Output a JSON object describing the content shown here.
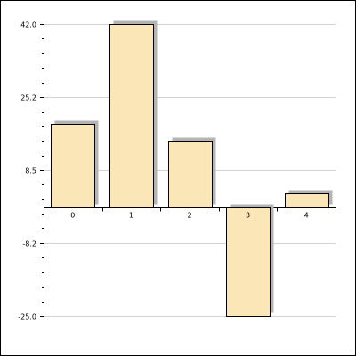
{
  "chart_data": {
    "type": "bar",
    "title": "",
    "xlabel": "",
    "ylabel": "",
    "categories": [
      "0",
      "1",
      "2",
      "3",
      "4"
    ],
    "series": [
      {
        "values": [
          19.2,
          42.0,
          15.3,
          -25.0,
          3.2
        ]
      }
    ],
    "ylim": [
      -25.0,
      42.0
    ],
    "yticks": [
      "42.0",
      "25.2",
      "8.5",
      "-8.2",
      "-25.0"
    ],
    "ytick_values": [
      42.0,
      25.2,
      8.5,
      -8.2,
      -25.0
    ],
    "grid": true,
    "colors": {
      "bar_fill": "#fae6b7",
      "bar_stroke": "#000000",
      "shadow": "#b4b4b4",
      "grid": "#d2d2d2",
      "axis": "#000000"
    }
  }
}
